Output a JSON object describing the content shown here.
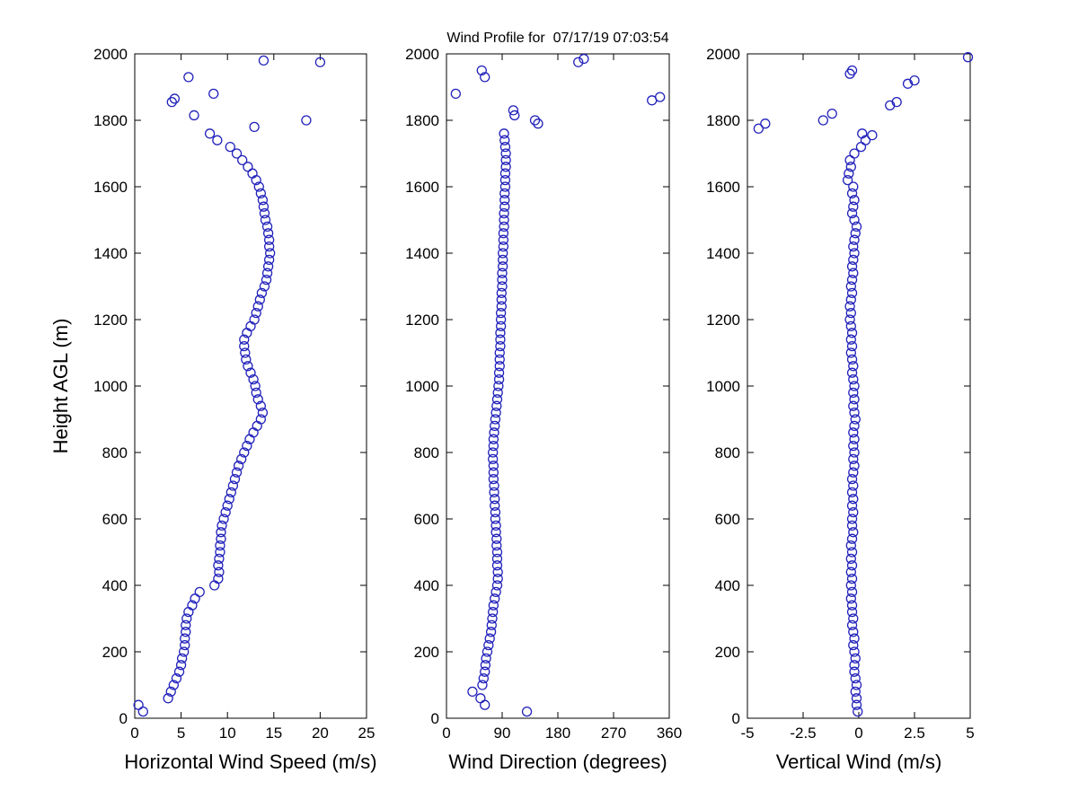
{
  "title": "Wind Profile for  07/17/19 07:03:54",
  "background": "#ffffff",
  "axis_color": "#000000",
  "marker": {
    "shape": "open-circle",
    "color": "#2222bb"
  },
  "chart_data": [
    {
      "type": "scatter",
      "id": "horizontal-wind-speed",
      "xlabel": "Horizontal Wind Speed (m/s)",
      "ylabel": "Height AGL (m)",
      "xlim": [
        0,
        25
      ],
      "ylim": [
        0,
        2000
      ],
      "xticks": [
        0,
        5,
        10,
        15,
        20,
        25
      ],
      "yticks": [
        0,
        200,
        400,
        600,
        800,
        1000,
        1200,
        1400,
        1600,
        1800,
        2000
      ],
      "grid": false,
      "points": [
        [
          20,
          0.9
        ],
        [
          40,
          0.4
        ],
        [
          60,
          3.6
        ],
        [
          80,
          3.9
        ],
        [
          100,
          4.2
        ],
        [
          120,
          4.5
        ],
        [
          140,
          4.8
        ],
        [
          160,
          5.0
        ],
        [
          180,
          5.1
        ],
        [
          200,
          5.3
        ],
        [
          220,
          5.4
        ],
        [
          240,
          5.4
        ],
        [
          260,
          5.5
        ],
        [
          280,
          5.5
        ],
        [
          300,
          5.6
        ],
        [
          320,
          5.8
        ],
        [
          340,
          6.2
        ],
        [
          360,
          6.5
        ],
        [
          380,
          7.0
        ],
        [
          400,
          8.6
        ],
        [
          420,
          9.0
        ],
        [
          440,
          9.1
        ],
        [
          460,
          9.0
        ],
        [
          480,
          9.1
        ],
        [
          500,
          9.2
        ],
        [
          520,
          9.2
        ],
        [
          540,
          9.3
        ],
        [
          560,
          9.3
        ],
        [
          580,
          9.4
        ],
        [
          600,
          9.6
        ],
        [
          620,
          9.8
        ],
        [
          640,
          10.0
        ],
        [
          660,
          10.2
        ],
        [
          680,
          10.4
        ],
        [
          700,
          10.6
        ],
        [
          720,
          10.8
        ],
        [
          740,
          11.0
        ],
        [
          760,
          11.2
        ],
        [
          780,
          11.5
        ],
        [
          800,
          11.8
        ],
        [
          820,
          12.1
        ],
        [
          840,
          12.4
        ],
        [
          860,
          12.8
        ],
        [
          880,
          13.2
        ],
        [
          900,
          13.6
        ],
        [
          920,
          13.8
        ],
        [
          940,
          13.6
        ],
        [
          960,
          13.3
        ],
        [
          980,
          13.1
        ],
        [
          1000,
          13.0
        ],
        [
          1020,
          12.8
        ],
        [
          1040,
          12.5
        ],
        [
          1060,
          12.2
        ],
        [
          1080,
          12.0
        ],
        [
          1100,
          11.9
        ],
        [
          1120,
          11.8
        ],
        [
          1140,
          11.8
        ],
        [
          1160,
          12.1
        ],
        [
          1180,
          12.5
        ],
        [
          1200,
          12.9
        ],
        [
          1220,
          13.1
        ],
        [
          1240,
          13.3
        ],
        [
          1260,
          13.5
        ],
        [
          1280,
          13.7
        ],
        [
          1300,
          14.0
        ],
        [
          1320,
          14.2
        ],
        [
          1340,
          14.3
        ],
        [
          1360,
          14.4
        ],
        [
          1380,
          14.5
        ],
        [
          1400,
          14.6
        ],
        [
          1420,
          14.5
        ],
        [
          1440,
          14.5
        ],
        [
          1460,
          14.4
        ],
        [
          1480,
          14.3
        ],
        [
          1500,
          14.1
        ],
        [
          1520,
          14.0
        ],
        [
          1540,
          13.9
        ],
        [
          1560,
          13.8
        ],
        [
          1580,
          13.6
        ],
        [
          1600,
          13.4
        ],
        [
          1620,
          13.1
        ],
        [
          1640,
          12.7
        ],
        [
          1660,
          12.2
        ],
        [
          1680,
          11.6
        ],
        [
          1700,
          11.0
        ],
        [
          1720,
          10.3
        ],
        [
          1740,
          8.9
        ],
        [
          1760,
          8.1
        ],
        [
          1780,
          12.9
        ],
        [
          1800,
          18.5
        ],
        [
          1815,
          6.4
        ],
        [
          1855,
          4.0
        ],
        [
          1865,
          4.3
        ],
        [
          1880,
          8.5
        ],
        [
          1930,
          5.8
        ],
        [
          1975,
          20.0
        ],
        [
          1980,
          13.9
        ]
      ]
    },
    {
      "type": "scatter",
      "id": "wind-direction",
      "xlabel": "Wind Direction (degrees)",
      "ylabel": "",
      "xlim": [
        0,
        360
      ],
      "ylim": [
        0,
        2000
      ],
      "xticks": [
        0,
        90,
        180,
        270,
        360
      ],
      "yticks": [
        0,
        200,
        400,
        600,
        800,
        1000,
        1200,
        1400,
        1600,
        1800,
        2000
      ],
      "grid": false,
      "points": [
        [
          20,
          130
        ],
        [
          40,
          62
        ],
        [
          60,
          55
        ],
        [
          80,
          42
        ],
        [
          100,
          58
        ],
        [
          120,
          60
        ],
        [
          140,
          62
        ],
        [
          160,
          63
        ],
        [
          180,
          64
        ],
        [
          200,
          66
        ],
        [
          220,
          68
        ],
        [
          240,
          70
        ],
        [
          260,
          72
        ],
        [
          280,
          73
        ],
        [
          300,
          74
        ],
        [
          320,
          75
        ],
        [
          340,
          76
        ],
        [
          360,
          78
        ],
        [
          380,
          80
        ],
        [
          400,
          82
        ],
        [
          420,
          83
        ],
        [
          440,
          83
        ],
        [
          460,
          82
        ],
        [
          480,
          82
        ],
        [
          500,
          82
        ],
        [
          520,
          81
        ],
        [
          540,
          81
        ],
        [
          560,
          80
        ],
        [
          580,
          80
        ],
        [
          600,
          79
        ],
        [
          620,
          79
        ],
        [
          640,
          78
        ],
        [
          660,
          78
        ],
        [
          680,
          77
        ],
        [
          700,
          77
        ],
        [
          720,
          76
        ],
        [
          740,
          76
        ],
        [
          760,
          76
        ],
        [
          780,
          75
        ],
        [
          800,
          75
        ],
        [
          820,
          76
        ],
        [
          840,
          76
        ],
        [
          860,
          77
        ],
        [
          880,
          78
        ],
        [
          900,
          79
        ],
        [
          920,
          80
        ],
        [
          940,
          81
        ],
        [
          960,
          82
        ],
        [
          980,
          83
        ],
        [
          1000,
          84
        ],
        [
          1020,
          85
        ],
        [
          1040,
          85
        ],
        [
          1060,
          86
        ],
        [
          1080,
          86
        ],
        [
          1100,
          86
        ],
        [
          1120,
          87
        ],
        [
          1140,
          87
        ],
        [
          1160,
          87
        ],
        [
          1180,
          88
        ],
        [
          1200,
          88
        ],
        [
          1220,
          88
        ],
        [
          1240,
          89
        ],
        [
          1260,
          89
        ],
        [
          1280,
          89
        ],
        [
          1300,
          90
        ],
        [
          1320,
          90
        ],
        [
          1340,
          90
        ],
        [
          1360,
          91
        ],
        [
          1380,
          91
        ],
        [
          1400,
          91
        ],
        [
          1420,
          92
        ],
        [
          1440,
          92
        ],
        [
          1460,
          92
        ],
        [
          1480,
          93
        ],
        [
          1500,
          93
        ],
        [
          1520,
          93
        ],
        [
          1540,
          94
        ],
        [
          1560,
          94
        ],
        [
          1580,
          94
        ],
        [
          1600,
          95
        ],
        [
          1620,
          95
        ],
        [
          1640,
          95
        ],
        [
          1660,
          96
        ],
        [
          1680,
          96
        ],
        [
          1700,
          96
        ],
        [
          1720,
          95
        ],
        [
          1740,
          94
        ],
        [
          1760,
          93
        ],
        [
          1790,
          148
        ],
        [
          1800,
          143
        ],
        [
          1815,
          110
        ],
        [
          1830,
          108
        ],
        [
          1860,
          332
        ],
        [
          1870,
          345
        ],
        [
          1880,
          15
        ],
        [
          1930,
          62
        ],
        [
          1950,
          57
        ],
        [
          1975,
          213
        ],
        [
          1985,
          222
        ]
      ]
    },
    {
      "type": "scatter",
      "id": "vertical-wind",
      "xlabel": "Vertical Wind (m/s)",
      "ylabel": "",
      "xlim": [
        -5,
        5
      ],
      "ylim": [
        0,
        2000
      ],
      "xticks": [
        -5,
        -2.5,
        0,
        2.5,
        5
      ],
      "yticks": [
        0,
        200,
        400,
        600,
        800,
        1000,
        1200,
        1400,
        1600,
        1800,
        2000
      ],
      "grid": false,
      "points": [
        [
          20,
          -0.05
        ],
        [
          40,
          -0.1
        ],
        [
          60,
          -0.1
        ],
        [
          80,
          -0.15
        ],
        [
          100,
          -0.1
        ],
        [
          120,
          -0.15
        ],
        [
          140,
          -0.2
        ],
        [
          160,
          -0.2
        ],
        [
          180,
          -0.15
        ],
        [
          200,
          -0.2
        ],
        [
          220,
          -0.25
        ],
        [
          240,
          -0.2
        ],
        [
          260,
          -0.25
        ],
        [
          280,
          -0.3
        ],
        [
          300,
          -0.25
        ],
        [
          320,
          -0.3
        ],
        [
          340,
          -0.3
        ],
        [
          360,
          -0.35
        ],
        [
          380,
          -0.3
        ],
        [
          400,
          -0.35
        ],
        [
          420,
          -0.3
        ],
        [
          440,
          -0.35
        ],
        [
          460,
          -0.3
        ],
        [
          480,
          -0.35
        ],
        [
          500,
          -0.3
        ],
        [
          520,
          -0.35
        ],
        [
          540,
          -0.3
        ],
        [
          560,
          -0.25
        ],
        [
          580,
          -0.3
        ],
        [
          600,
          -0.3
        ],
        [
          620,
          -0.25
        ],
        [
          640,
          -0.3
        ],
        [
          660,
          -0.25
        ],
        [
          680,
          -0.3
        ],
        [
          700,
          -0.25
        ],
        [
          720,
          -0.3
        ],
        [
          740,
          -0.25
        ],
        [
          760,
          -0.2
        ],
        [
          780,
          -0.25
        ],
        [
          800,
          -0.2
        ],
        [
          820,
          -0.25
        ],
        [
          840,
          -0.2
        ],
        [
          860,
          -0.25
        ],
        [
          880,
          -0.2
        ],
        [
          900,
          -0.15
        ],
        [
          920,
          -0.2
        ],
        [
          940,
          -0.25
        ],
        [
          960,
          -0.2
        ],
        [
          980,
          -0.25
        ],
        [
          1000,
          -0.2
        ],
        [
          1020,
          -0.25
        ],
        [
          1040,
          -0.3
        ],
        [
          1060,
          -0.25
        ],
        [
          1080,
          -0.3
        ],
        [
          1100,
          -0.35
        ],
        [
          1120,
          -0.3
        ],
        [
          1140,
          -0.35
        ],
        [
          1160,
          -0.3
        ],
        [
          1180,
          -0.35
        ],
        [
          1200,
          -0.4
        ],
        [
          1220,
          -0.35
        ],
        [
          1240,
          -0.4
        ],
        [
          1260,
          -0.35
        ],
        [
          1280,
          -0.3
        ],
        [
          1300,
          -0.35
        ],
        [
          1320,
          -0.3
        ],
        [
          1340,
          -0.25
        ],
        [
          1360,
          -0.3
        ],
        [
          1380,
          -0.25
        ],
        [
          1400,
          -0.2
        ],
        [
          1420,
          -0.25
        ],
        [
          1440,
          -0.2
        ],
        [
          1460,
          -0.15
        ],
        [
          1480,
          -0.1
        ],
        [
          1500,
          -0.2
        ],
        [
          1520,
          -0.3
        ],
        [
          1540,
          -0.25
        ],
        [
          1560,
          -0.2
        ],
        [
          1580,
          -0.3
        ],
        [
          1600,
          -0.25
        ],
        [
          1620,
          -0.5
        ],
        [
          1640,
          -0.45
        ],
        [
          1660,
          -0.35
        ],
        [
          1680,
          -0.4
        ],
        [
          1700,
          -0.2
        ],
        [
          1720,
          0.1
        ],
        [
          1740,
          0.3
        ],
        [
          1755,
          0.6
        ],
        [
          1760,
          0.15
        ],
        [
          1775,
          -4.5
        ],
        [
          1790,
          -4.2
        ],
        [
          1800,
          -1.6
        ],
        [
          1820,
          -1.2
        ],
        [
          1845,
          1.4
        ],
        [
          1855,
          1.7
        ],
        [
          1910,
          2.2
        ],
        [
          1920,
          2.5
        ],
        [
          1940,
          -0.4
        ],
        [
          1950,
          -0.3
        ],
        [
          1990,
          4.9
        ]
      ]
    }
  ]
}
